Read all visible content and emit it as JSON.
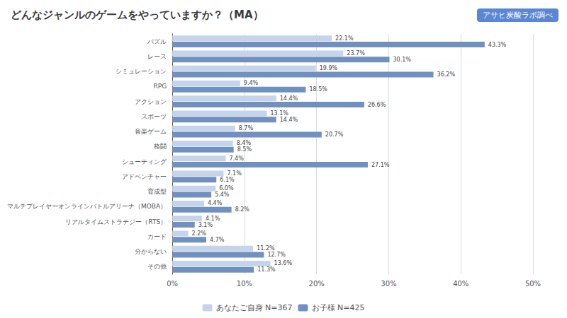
{
  "chart_data": {
    "type": "bar",
    "orientation": "horizontal",
    "title": "どんなジャンルのゲームをやっていますか？（MA）",
    "annotations": [
      "アサヒ炭酸ラボ調べ"
    ],
    "categories": [
      "パズル",
      "レース",
      "シミュレーション",
      "RPG",
      "アクション",
      "スポーツ",
      "音楽ゲーム",
      "格闘",
      "シューティング",
      "アドベンチャー",
      "育成型",
      "マルチプレイヤーオンラインバトルアリーナ（MOBA）",
      "リアルタイムストラテジー（RTS）",
      "カード",
      "分からない",
      "その他"
    ],
    "series": [
      {
        "name": "あなたご自身 N=367",
        "color": "#c5d4ea",
        "values": [
          22.1,
          23.7,
          19.9,
          9.4,
          14.4,
          13.1,
          8.7,
          8.4,
          7.4,
          7.1,
          6.0,
          4.4,
          4.1,
          2.2,
          11.2,
          13.6
        ],
        "value_labels": [
          "22.1%",
          "23.7%",
          "19.9%",
          "9.4%",
          "14.4%",
          "13.1%",
          "8.7%",
          "8.4%",
          "7.4%",
          "7.1%",
          "6.0%",
          "4.4%",
          "4.1%",
          "2.2%",
          "11.2%",
          "13.6%"
        ]
      },
      {
        "name": "お子様 N=425",
        "color": "#7090c0",
        "values": [
          43.3,
          30.1,
          36.2,
          18.5,
          26.6,
          14.4,
          20.7,
          8.5,
          27.1,
          6.1,
          5.4,
          8.2,
          3.1,
          4.7,
          12.7,
          11.3
        ],
        "value_labels": [
          "43.3%",
          "30.1%",
          "36.2%",
          "18.5%",
          "26.6%",
          "14.4%",
          "20.7%",
          "8.5%",
          "27.1%",
          "6.1%",
          "5.4%",
          "8.2%",
          "3.1%",
          "4.7%",
          "12.7%",
          "11.3%"
        ]
      }
    ],
    "xlim": [
      0,
      50
    ],
    "xticks": [
      {
        "value": 0,
        "label": "0%"
      },
      {
        "value": 10,
        "label": "10%"
      },
      {
        "value": 20,
        "label": "20%"
      },
      {
        "value": 30,
        "label": "30%"
      },
      {
        "value": 40,
        "label": "40%"
      },
      {
        "value": 50,
        "label": "50%"
      }
    ],
    "grid": true,
    "data_labels": true,
    "legend": "bottom"
  }
}
